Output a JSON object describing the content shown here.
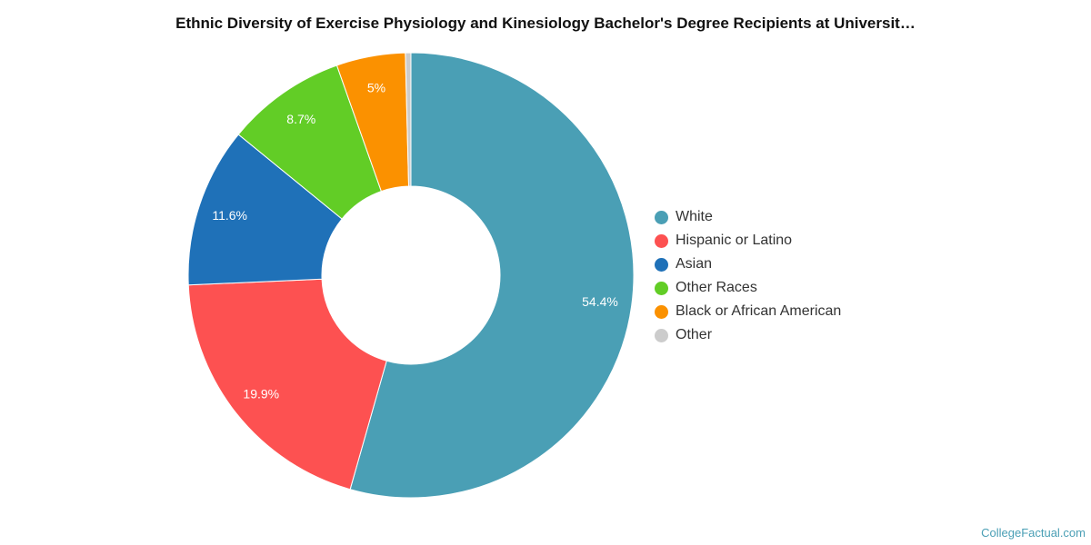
{
  "title": "Ethnic Diversity of Exercise Physiology and Kinesiology Bachelor's Degree Recipients at Universit…",
  "source": "CollegeFactual.com",
  "chart_data": {
    "type": "pie",
    "donut": true,
    "legend_position": "right",
    "slices": [
      {
        "name": "White",
        "value": 54.4,
        "label": "54.4%",
        "color": "#4a9fb5"
      },
      {
        "name": "Hispanic or Latino",
        "value": 19.9,
        "label": "19.9%",
        "color": "#fd5151"
      },
      {
        "name": "Asian",
        "value": 11.6,
        "label": "11.6%",
        "color": "#1f71b8"
      },
      {
        "name": "Other Races",
        "value": 8.7,
        "label": "8.7%",
        "color": "#62cd26"
      },
      {
        "name": "Black or African American",
        "value": 5.0,
        "label": "5%",
        "color": "#fb9100"
      },
      {
        "name": "Other",
        "value": 0.4,
        "label": "",
        "color": "#cccccc"
      }
    ]
  }
}
